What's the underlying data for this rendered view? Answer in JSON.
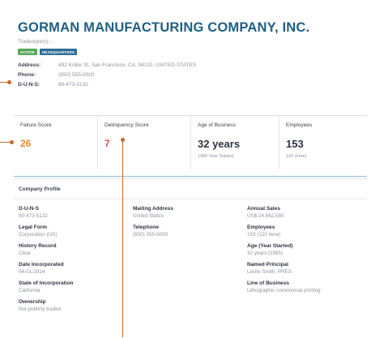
{
  "company": {
    "name": "GORMAN MANUFACTURING COMPANY, INC.",
    "tradestyles": "Tradestyle(s): -",
    "badges": {
      "active": "ACTIVE",
      "hq": "HEADQUARTERS"
    },
    "address_label": "Address:",
    "address_value": "492 Koller St, San Francisco, CA, 94110, UNITED STATES",
    "phone_label": "Phone:",
    "phone_value": "(650) 555-0000",
    "duns_label": "D-U-N-S:",
    "duns_value": "80-473-5132"
  },
  "metrics": [
    {
      "label": "Failure Score",
      "value": "26",
      "sub": ""
    },
    {
      "label": "Delinquency Score",
      "value": "7",
      "sub": ""
    },
    {
      "label": "Age of Business",
      "value": "32 years",
      "sub": "1985 Year Started"
    },
    {
      "label": "Employees",
      "value": "153",
      "sub": "120 (here)"
    }
  ],
  "profile": {
    "title": "Company Profile",
    "col1": [
      {
        "label": "D-U-N-S",
        "value": "80-473-5132"
      },
      {
        "label": "Legal Form",
        "value": "Corporation (US)"
      },
      {
        "label": "History Record",
        "value": "Clear"
      },
      {
        "label": "Date Incorporated",
        "value": "04-01-2014"
      },
      {
        "label": "State of Incorporation",
        "value": "California"
      },
      {
        "label": "Ownership",
        "value": "Not publicly traded"
      }
    ],
    "col2": [
      {
        "label": "Mailing Address",
        "value": "United States"
      },
      {
        "label": "Telephone",
        "value": "(650) 555-0000"
      }
    ],
    "col3": [
      {
        "label": "Annual Sales",
        "value": "US$ 24,662,580"
      },
      {
        "label": "Employees",
        "value": "153 (120 here)"
      },
      {
        "label": "Age (Year Started)",
        "value": "32 years (1985)"
      },
      {
        "label": "Named Principal",
        "value": "Leslie Smith, PRES"
      },
      {
        "label": "Line of Business",
        "value": "Lithographic commercial printing"
      }
    ]
  },
  "colors": {
    "title": "#1f5f83",
    "accent_marker": "#c8662b",
    "failure_score": "#e98a2f",
    "delinquency_score": "#d9534f"
  }
}
